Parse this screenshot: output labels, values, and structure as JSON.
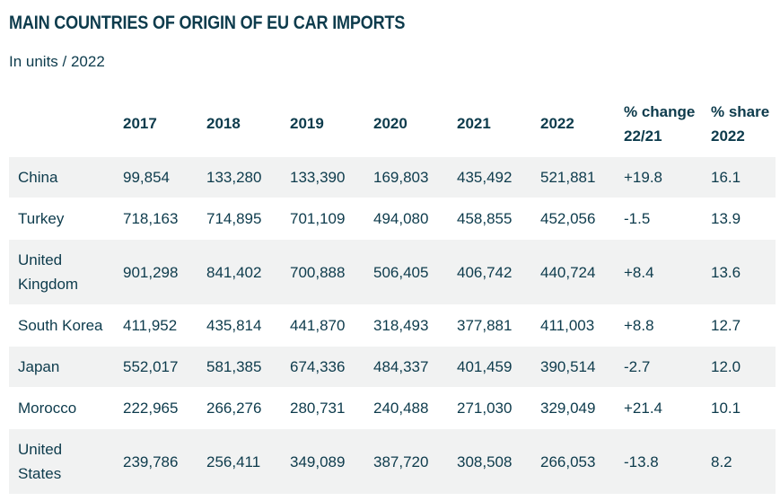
{
  "chart_data": {
    "type": "table",
    "title": "MAIN COUNTRIES OF ORIGIN OF EU CAR IMPORTS",
    "subtitle": "In units / 2022",
    "columns": [
      "",
      "2017",
      "2018",
      "2019",
      "2020",
      "2021",
      "2022",
      "% change 22/21",
      "% share 2022"
    ],
    "column_header_lines": [
      [
        ""
      ],
      [
        "2017"
      ],
      [
        "2018"
      ],
      [
        "2019"
      ],
      [
        "2020"
      ],
      [
        "2021"
      ],
      [
        "2022"
      ],
      [
        "% change",
        "22/21"
      ],
      [
        "% share",
        "2022"
      ]
    ],
    "rows": [
      {
        "country": "China",
        "values": [
          "99,854",
          "133,280",
          "133,390",
          "169,803",
          "435,492",
          "521,881"
        ],
        "change": "+19.8",
        "share": "16.1"
      },
      {
        "country": "Turkey",
        "values": [
          "718,163",
          "714,895",
          "701,109",
          "494,080",
          "458,855",
          "452,056"
        ],
        "change": "-1.5",
        "share": "13.9"
      },
      {
        "country": "United Kingdom",
        "values": [
          "901,298",
          "841,402",
          "700,888",
          "506,405",
          "406,742",
          "440,724"
        ],
        "change": "+8.4",
        "share": "13.6"
      },
      {
        "country": "South Korea",
        "values": [
          "411,952",
          "435,814",
          "441,870",
          "318,493",
          "377,881",
          "411,003"
        ],
        "change": "+8.8",
        "share": "12.7"
      },
      {
        "country": "Japan",
        "values": [
          "552,017",
          "581,385",
          "674,336",
          "484,337",
          "401,459",
          "390,514"
        ],
        "change": "-2.7",
        "share": "12.0"
      },
      {
        "country": "Morocco",
        "values": [
          "222,965",
          "266,276",
          "280,731",
          "240,488",
          "271,030",
          "329,049"
        ],
        "change": "+21.4",
        "share": "10.1"
      },
      {
        "country": "United States",
        "values": [
          "239,786",
          "256,411",
          "349,089",
          "387,720",
          "308,508",
          "266,053"
        ],
        "change": "-13.8",
        "share": "8.2"
      }
    ]
  },
  "colors": {
    "text": "#0d3b4c",
    "row_shade": "#f1f2f2",
    "background": "#ffffff"
  }
}
